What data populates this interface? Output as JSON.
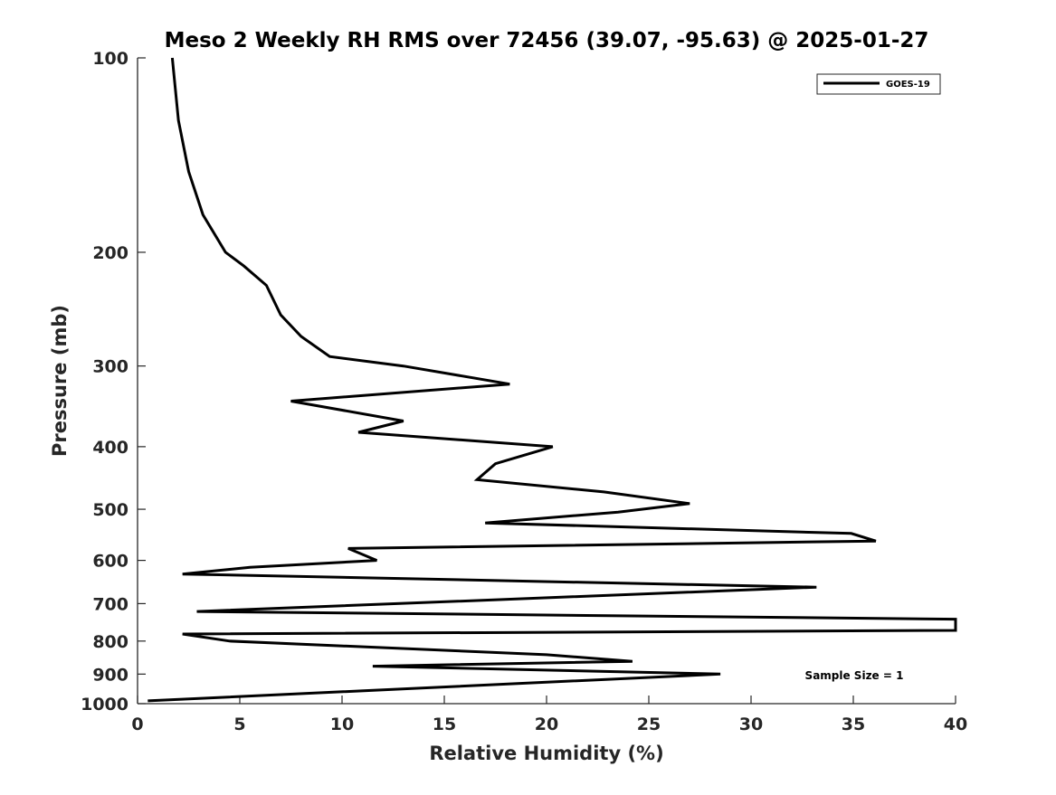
{
  "chart_data": {
    "type": "line",
    "title": "Meso 2 Weekly RH RMS over 72456 (39.07, -95.63) @ 2025-01-27",
    "xlabel": "Relative Humidity (%)",
    "ylabel": "Pressure (mb)",
    "xlim": [
      0,
      40
    ],
    "ylim": [
      1000,
      100
    ],
    "y_scale": "log",
    "y_inverted": true,
    "grid": false,
    "legend_position": "top-right",
    "xticks": [
      0,
      5,
      10,
      15,
      20,
      25,
      30,
      35,
      40
    ],
    "yticks": [
      100,
      200,
      300,
      400,
      500,
      600,
      700,
      800,
      900,
      1000
    ],
    "series": [
      {
        "name": "GOES-19",
        "color": "#000000",
        "points": [
          {
            "x": 1.7,
            "y": 100
          },
          {
            "x": 2.0,
            "y": 125
          },
          {
            "x": 2.5,
            "y": 150
          },
          {
            "x": 3.2,
            "y": 175
          },
          {
            "x": 4.3,
            "y": 200
          },
          {
            "x": 5.2,
            "y": 210
          },
          {
            "x": 6.3,
            "y": 225
          },
          {
            "x": 7.0,
            "y": 250
          },
          {
            "x": 8.0,
            "y": 270
          },
          {
            "x": 9.4,
            "y": 290
          },
          {
            "x": 13.0,
            "y": 300
          },
          {
            "x": 18.2,
            "y": 320
          },
          {
            "x": 7.5,
            "y": 340
          },
          {
            "x": 13.0,
            "y": 365
          },
          {
            "x": 10.8,
            "y": 380
          },
          {
            "x": 20.3,
            "y": 400
          },
          {
            "x": 17.5,
            "y": 425
          },
          {
            "x": 16.6,
            "y": 450
          },
          {
            "x": 22.8,
            "y": 470
          },
          {
            "x": 27.0,
            "y": 490
          },
          {
            "x": 23.5,
            "y": 505
          },
          {
            "x": 17.0,
            "y": 525
          },
          {
            "x": 34.9,
            "y": 545
          },
          {
            "x": 36.1,
            "y": 560
          },
          {
            "x": 10.3,
            "y": 575
          },
          {
            "x": 11.7,
            "y": 600
          },
          {
            "x": 5.5,
            "y": 615
          },
          {
            "x": 2.2,
            "y": 630
          },
          {
            "x": 33.2,
            "y": 660
          },
          {
            "x": 2.9,
            "y": 720
          },
          {
            "x": 40.0,
            "y": 740
          },
          {
            "x": 40.0,
            "y": 770
          },
          {
            "x": 2.2,
            "y": 780
          },
          {
            "x": 4.5,
            "y": 800
          },
          {
            "x": 20.0,
            "y": 840
          },
          {
            "x": 24.2,
            "y": 860
          },
          {
            "x": 11.5,
            "y": 875
          },
          {
            "x": 28.5,
            "y": 900
          },
          {
            "x": 0.5,
            "y": 990
          }
        ]
      }
    ],
    "annotation": "Sample Size = 1"
  }
}
